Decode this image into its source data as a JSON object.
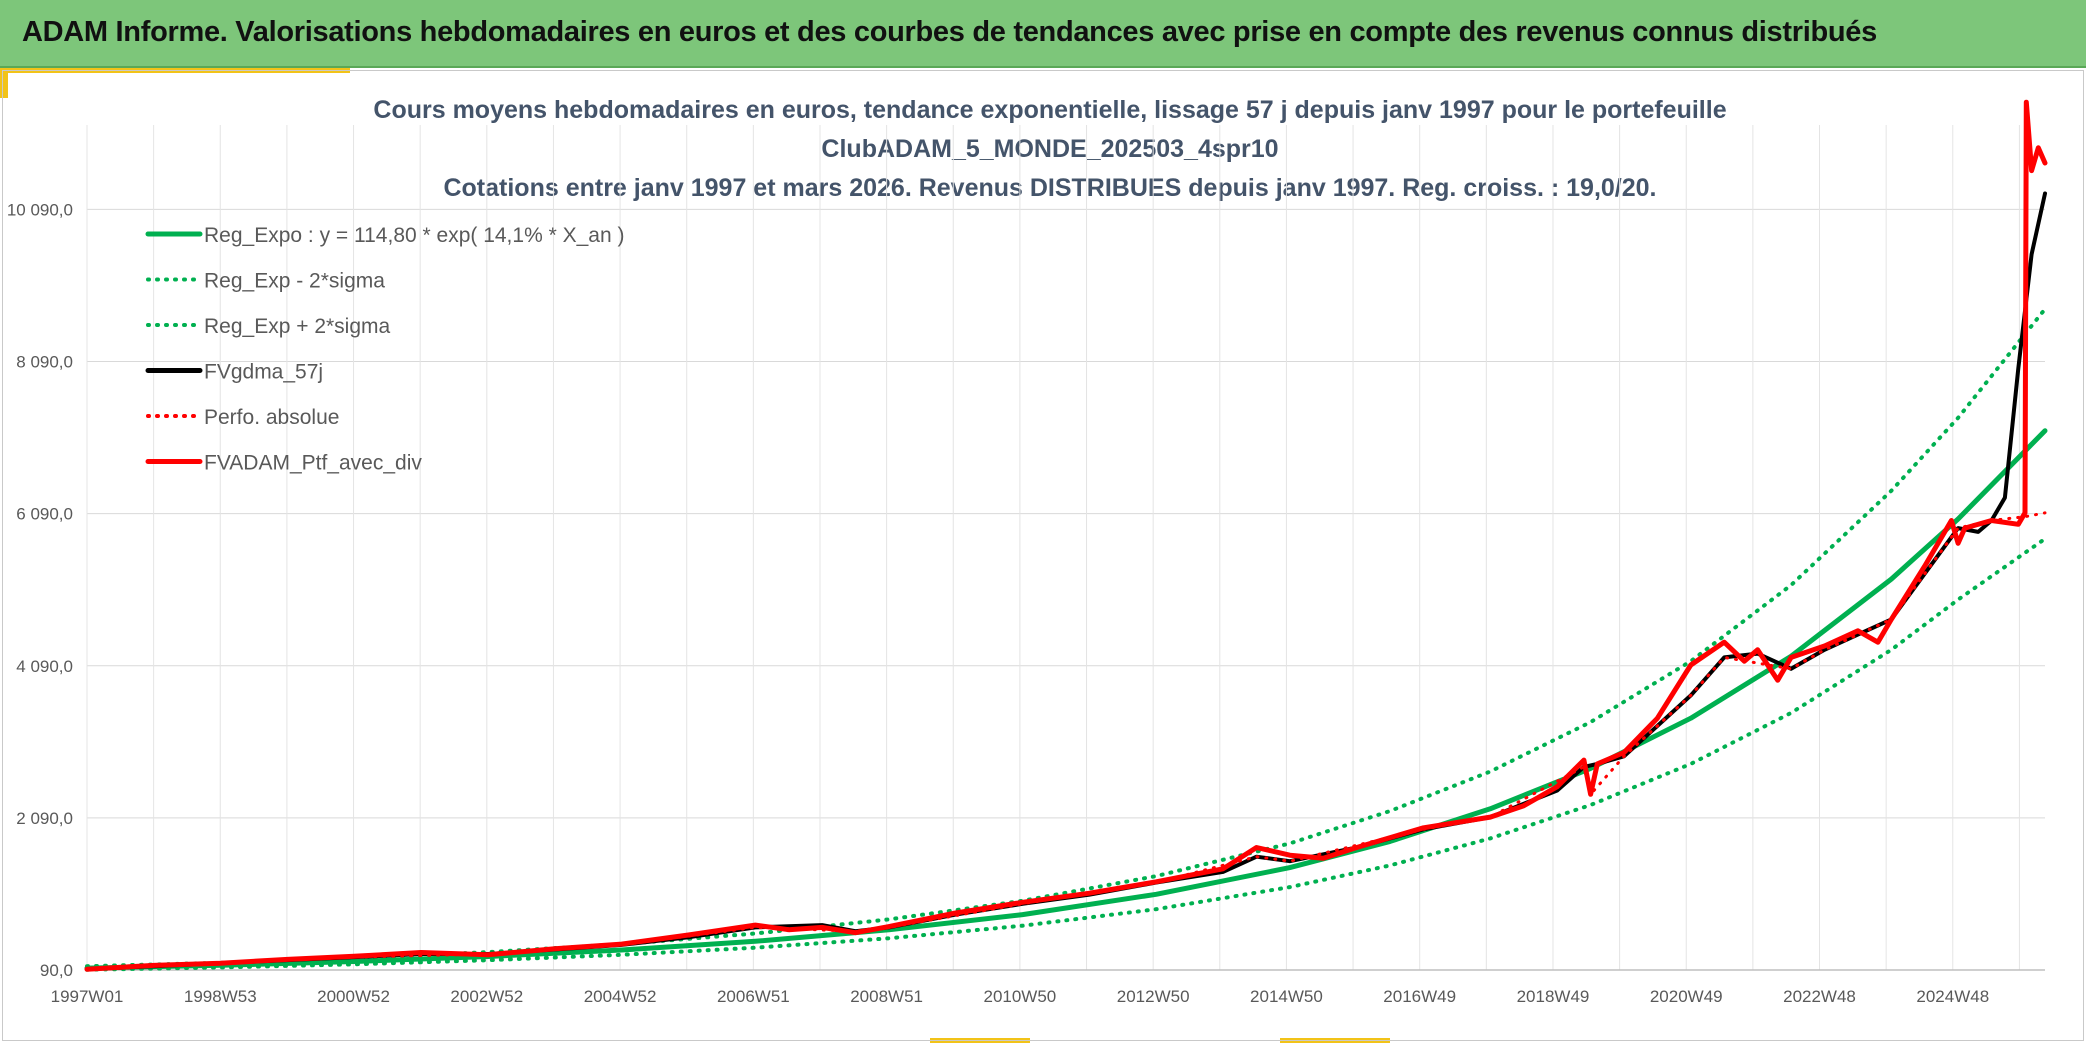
{
  "header": {
    "title": "ADAM Informe. Valorisations hebdomadaires en euros et des courbes de tendances avec prise en compte des revenus connus distribués"
  },
  "chart_data": {
    "type": "line",
    "title": [
      "Cours moyens hebdomadaires en euros, tendance exponentielle, lissage 57 j depuis janv 1997 pour le portefeuille",
      "ClubADAM_5_MONDE_202503_4spr10",
      "Cotations entre janv 1997 et mars 2026. Revenus DISTRIBUES depuis janv 1997. Reg. croiss. : 19,0/20."
    ],
    "x_ticks": [
      "1997W01",
      "1998W53",
      "2000W52",
      "2002W52",
      "2004W52",
      "2006W51",
      "2008W51",
      "2010W50",
      "2012W50",
      "2014W50",
      "2016W49",
      "2018W49",
      "2020W49",
      "2022W48",
      "2024W48"
    ],
    "x_range": [
      1997.0,
      2026.3
    ],
    "y_ticks": [
      "90,0",
      "2 090,0",
      "4 090,0",
      "6 090,0",
      "8 090,0",
      "10 090,0"
    ],
    "ylim": [
      90,
      11200
    ],
    "grid": true,
    "legend_position": "top-left",
    "colors": {
      "green": "#00b050",
      "black": "#000000",
      "red": "#ff0000",
      "grid": "#d9d9d9"
    },
    "series": [
      {
        "name": "Reg_Expo : y = 114,80 * exp( 14,1% *  X_an )",
        "style": "solid",
        "color": "#00b050",
        "x": [
          1997.0,
          1999.0,
          2001.0,
          2003.0,
          2005.0,
          2007.0,
          2009.0,
          2011.0,
          2013.0,
          2015.0,
          2016.5,
          2018.0,
          2019.5,
          2021.0,
          2022.5,
          2024.0,
          2025.0,
          2026.3
        ],
        "y": [
          115,
          152,
          202,
          267,
          353,
          467,
          618,
          819,
          1085,
          1436,
          1781,
          2209,
          2740,
          3400,
          4216,
          5229,
          6020,
          7180
        ]
      },
      {
        "name": "Reg_Exp - 2*sigma",
        "style": "dotted",
        "color": "#00b050",
        "x": [
          1997.0,
          1999.0,
          2001.0,
          2003.0,
          2005.0,
          2007.0,
          2009.0,
          2011.0,
          2013.0,
          2015.0,
          2016.5,
          2018.0,
          2019.5,
          2021.0,
          2022.5,
          2024.0,
          2025.0,
          2026.3
        ],
        "y": [
          94,
          124,
          165,
          219,
          290,
          383,
          507,
          672,
          890,
          1180,
          1465,
          1820,
          2260,
          2800,
          3470,
          4300,
          4960,
          5760
        ]
      },
      {
        "name": "Reg_Exp + 2*sigma",
        "style": "dotted",
        "color": "#00b050",
        "x": [
          1997.0,
          1999.0,
          2001.0,
          2003.0,
          2005.0,
          2007.0,
          2009.0,
          2011.0,
          2013.0,
          2015.0,
          2016.5,
          2018.0,
          2019.5,
          2021.0,
          2022.5,
          2024.0,
          2025.0,
          2026.3
        ],
        "y": [
          140,
          185,
          246,
          325,
          430,
          570,
          755,
          1000,
          1325,
          1755,
          2180,
          2700,
          3350,
          4150,
          5150,
          6390,
          7350,
          8780
        ]
      },
      {
        "name": "FVgdma_57j",
        "style": "solid",
        "color": "#000000",
        "x": [
          1997.0,
          1998.0,
          1999.0,
          2000.0,
          2001.0,
          2002.0,
          2003.0,
          2004.0,
          2005.0,
          2006.0,
          2007.0,
          2008.0,
          2008.5,
          2009.0,
          2010.0,
          2011.0,
          2012.0,
          2013.0,
          2014.0,
          2014.5,
          2015.0,
          2016.0,
          2017.0,
          2018.0,
          2019.0,
          2019.4,
          2019.6,
          2020.0,
          2020.5,
          2021.0,
          2021.5,
          2022.0,
          2022.5,
          2023.0,
          2023.5,
          2024.0,
          2024.5,
          2025.0,
          2025.3,
          2025.5,
          2025.7,
          2025.9,
          2026.1,
          2026.3
        ],
        "y": [
          100,
          140,
          180,
          220,
          260,
          300,
          300,
          360,
          420,
          520,
          650,
          680,
          600,
          650,
          820,
          960,
          1080,
          1240,
          1380,
          1580,
          1520,
          1700,
          1940,
          2100,
          2450,
          2760,
          2800,
          2900,
          3300,
          3700,
          4200,
          4250,
          4050,
          4300,
          4500,
          4700,
          5300,
          5900,
          5850,
          6000,
          6300,
          8000,
          9500,
          10300
        ]
      },
      {
        "name": "Perfo. absolue",
        "style": "dotted",
        "color": "#ff0000",
        "x": [
          1997.0,
          1999.0,
          2001.0,
          2003.0,
          2005.0,
          2007.0,
          2008.5,
          2009.0,
          2011.0,
          2013.0,
          2014.5,
          2015.0,
          2017.0,
          2018.0,
          2019.4,
          2019.5,
          2020.0,
          2021.0,
          2021.5,
          2022.5,
          2023.0,
          2024.0,
          2025.0,
          2025.5,
          2026.0,
          2026.3
        ],
        "y": [
          100,
          180,
          260,
          300,
          420,
          650,
          600,
          650,
          960,
          1240,
          1580,
          1520,
          1940,
          2100,
          2760,
          2400,
          2900,
          3700,
          4200,
          4050,
          4300,
          4700,
          5900,
          6000,
          6050,
          6100
        ]
      },
      {
        "name": "FVADAM_Ptf_avec_div",
        "style": "solid",
        "color": "#ff0000",
        "x": [
          1997.0,
          1998.0,
          1999.0,
          2000.0,
          2001.0,
          2002.0,
          2003.0,
          2004.0,
          2005.0,
          2006.0,
          2007.0,
          2007.5,
          2008.0,
          2008.5,
          2009.0,
          2010.0,
          2011.0,
          2012.0,
          2013.0,
          2014.0,
          2014.5,
          2015.0,
          2015.5,
          2016.0,
          2017.0,
          2018.0,
          2018.5,
          2019.0,
          2019.4,
          2019.5,
          2019.6,
          2020.0,
          2020.5,
          2021.0,
          2021.5,
          2021.8,
          2022.0,
          2022.3,
          2022.5,
          2023.0,
          2023.5,
          2023.8,
          2024.0,
          2024.5,
          2024.9,
          2025.0,
          2025.1,
          2025.5,
          2025.9,
          2026.0,
          2026.02,
          2026.1,
          2026.2,
          2026.3
        ],
        "y": [
          100,
          150,
          180,
          230,
          270,
          320,
          290,
          370,
          430,
          550,
          680,
          620,
          650,
          580,
          660,
          840,
          980,
          1100,
          1250,
          1420,
          1700,
          1600,
          1560,
          1700,
          1960,
          2100,
          2250,
          2500,
          2850,
          2400,
          2800,
          2950,
          3400,
          4100,
          4400,
          4150,
          4300,
          3900,
          4200,
          4350,
          4550,
          4400,
          4700,
          5400,
          6000,
          5700,
          5900,
          6000,
          5950,
          6100,
          11500,
          10600,
          10900,
          10700
        ]
      }
    ]
  }
}
